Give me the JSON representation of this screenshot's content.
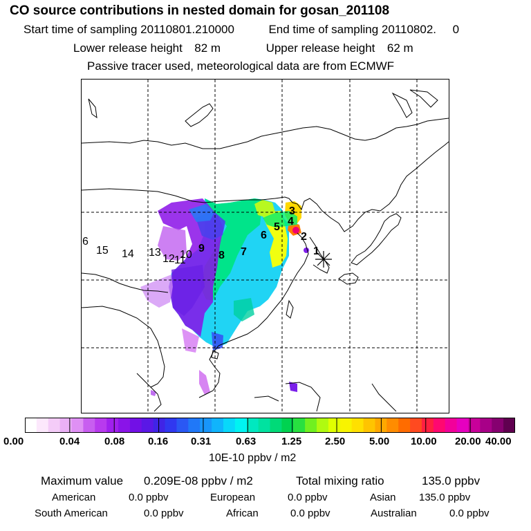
{
  "header": {
    "title": "CO  source contributions in nested domain for gosan_201108",
    "start_label": "Start time of sampling",
    "start_value": "20110801.210000",
    "end_label": "End time of sampling",
    "end_value": "20110802.     0",
    "lower_label": "Lower release height",
    "lower_value": "82 m",
    "upper_label": "Upper release height",
    "upper_value": "62 m",
    "note": "Passive tracer used, meteorological data are from ECMWF"
  },
  "map": {
    "region_labels": [
      "1",
      "2",
      "3",
      "4",
      "5",
      "6",
      "7",
      "8",
      "9",
      "10",
      "11",
      "12",
      "13",
      "14",
      "15",
      "6"
    ],
    "receptor_marker": "star"
  },
  "colorbar": {
    "tick_labels": [
      "0.00",
      "0.04",
      "0.08",
      "0.16",
      "0.31",
      "0.63",
      "1.25",
      "2.50",
      "5.00",
      "10.00",
      "20.00",
      "40.00"
    ],
    "colors": [
      "#ffffff",
      "#fce8fc",
      "#f4ccf8",
      "#eab0f6",
      "#df90f4",
      "#c85ef0",
      "#b83aee",
      "#a020ee",
      "#8a14e8",
      "#7210e6",
      "#5a18e6",
      "#4024e6",
      "#3038f0",
      "#2a58f4",
      "#2078f8",
      "#1896fa",
      "#10b4fc",
      "#08d8fa",
      "#00f4f2",
      "#00e8c0",
      "#00e2a0",
      "#00da78",
      "#00d250",
      "#28e040",
      "#70f020",
      "#b0fa10",
      "#e0ff00",
      "#f8f400",
      "#ffe000",
      "#ffc400",
      "#ffa800",
      "#ff8c00",
      "#ff6c00",
      "#ff4a20",
      "#ff2040",
      "#ff0870",
      "#f2009a",
      "#e600c0",
      "#c8009a",
      "#a80088",
      "#860070",
      "#600050"
    ],
    "unit": "10E-10 ppbv / m2"
  },
  "footer": {
    "max_label": "Maximum value",
    "max_value": "0.209E-08 ppbv / m2",
    "total_label": "Total mixing ratio",
    "total_value": "135.0 ppbv",
    "american_label": "American",
    "american_value": "0.0 ppbv",
    "european_label": "European",
    "european_value": "0.0 ppbv",
    "asian_label": "Asian",
    "asian_value": "135.0 ppbv",
    "south_american_label": "South American",
    "south_american_value": "0.0 ppbv",
    "african_label": "African",
    "african_value": "0.0 ppbv",
    "australian_label": "Australian",
    "australian_value": "0.0 ppbv"
  }
}
